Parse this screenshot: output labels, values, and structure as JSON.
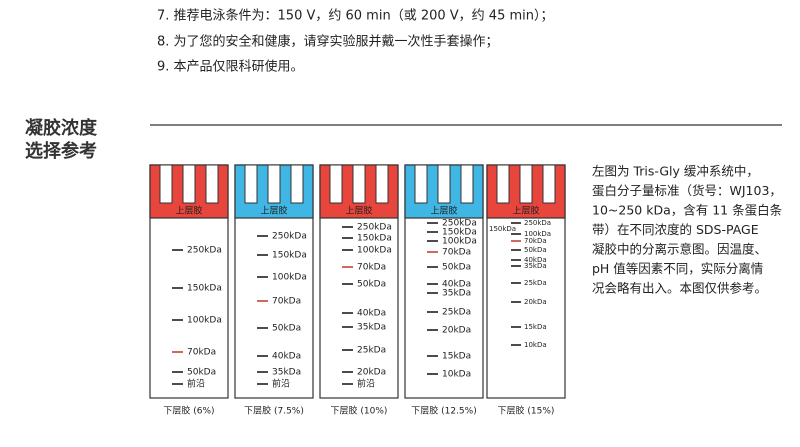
{
  "notes": [
    "7. 推荐电泳条件为：150 V，约 60 min（或 200 V，约 45 min）；",
    "8. 为了您的安全和健康，请穿实验服并戴一次性手套操作；",
    "9. 本产品仅限科研使用。"
  ],
  "section_title": [
    "凝胶浓度",
    "选择参考"
  ],
  "gels": [
    {
      "top": "上层胶",
      "bands": [
        "250kDa",
        "150kDa",
        "100kDa",
        "70kDa",
        "50kDa",
        "前沿"
      ],
      "caption": "下层胶 (6%)"
    },
    {
      "top": "上层胶",
      "bands": [
        "250kDa",
        "150kDa",
        "100kDa",
        "70kDa",
        "50kDa",
        "40kDa",
        "35kDa",
        "前沿"
      ],
      "caption": "下层胶 (7.5%)"
    },
    {
      "top": "上层胶",
      "bands": [
        "250kDa",
        "150kDa",
        "100kDa",
        "70kDa",
        "50kDa",
        "40kDa",
        "35kDa",
        "25kDa",
        "20kDa",
        "前沿"
      ],
      "caption": "下层胶 (10%)"
    },
    {
      "top": "上层胶",
      "bands": [
        "250kDa",
        "150kDa",
        "100kDa",
        "70kDa",
        "50kDa",
        "40kDa",
        "35kDa",
        "25kDa",
        "20kDa",
        "15kDa",
        "10kDa"
      ],
      "caption": "下层胶 (12.5%)"
    },
    {
      "top": "上层胶",
      "bands": [
        "250kDa",
        "150kDa",
        "100kDa",
        "70kDa",
        "50kDa",
        "40kDa",
        "35kDa",
        "25kDa",
        "20kDa",
        "15kDa",
        "10kDa"
      ],
      "caption": "下层胶 (15%)"
    }
  ],
  "description": [
    "左图为 Tris-Gly 缓冲系统中，",
    "蛋白分子量标准（货号：WJ103，",
    "10~250 kDa，含有 11 条蛋白条",
    "带）在不同浓度的 SDS-PAGE",
    "凝胶中的分离示意图。因温度、",
    "pH 值等因素不同，实际分离情",
    "况会略有出入。本图仅供参考。"
  ]
}
